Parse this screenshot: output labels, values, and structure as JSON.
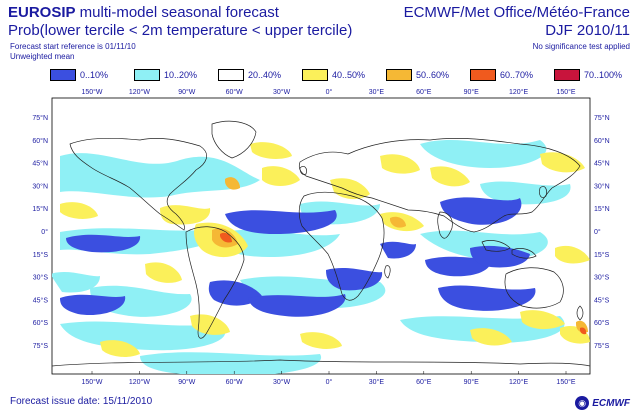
{
  "header": {
    "title_bold": "EUROSIP",
    "title_rest": " multi-model seasonal forecast",
    "subtitle": "Prob(lower tercile < 2m temperature < upper tercile)",
    "forecast_ref": "Forecast start reference is 01/11/10",
    "mean_type": "Unweighted mean",
    "source": "ECMWF/Met Office/Météo-France",
    "season": "DJF 2010/11",
    "significance": "No significance test applied"
  },
  "legend": [
    {
      "label": "0..10%",
      "color": "#3b4fe0"
    },
    {
      "label": "10..20%",
      "color": "#8ff0f5"
    },
    {
      "label": "20..40%",
      "color": "#ffffff"
    },
    {
      "label": "40..50%",
      "color": "#fbf05a"
    },
    {
      "label": "50..60%",
      "color": "#f5b835"
    },
    {
      "label": "60..70%",
      "color": "#f05a1e"
    },
    {
      "label": "70..100%",
      "color": "#c8143c"
    }
  ],
  "map": {
    "lon_labels": [
      "150°W",
      "120°W",
      "90°W",
      "60°W",
      "30°W",
      "0°",
      "30°E",
      "60°E",
      "90°E",
      "120°E",
      "150°E"
    ],
    "lat_labels": [
      "75°N",
      "60°N",
      "45°N",
      "30°N",
      "15°N",
      "0°",
      "15°S",
      "30°S",
      "45°S",
      "60°S",
      "75°S"
    ],
    "colors": {
      "coast": "#222222",
      "cyan": "#8ff0f5",
      "blue": "#3b4fe0",
      "yellow": "#fbf05a",
      "orange": "#f5b835",
      "red": "#f05a1e"
    }
  },
  "footer": {
    "issue_date": "Forecast issue date: 15/11/2010",
    "logo": "ECMWF",
    "logo_icon": "ecmwf-logo-icon"
  }
}
